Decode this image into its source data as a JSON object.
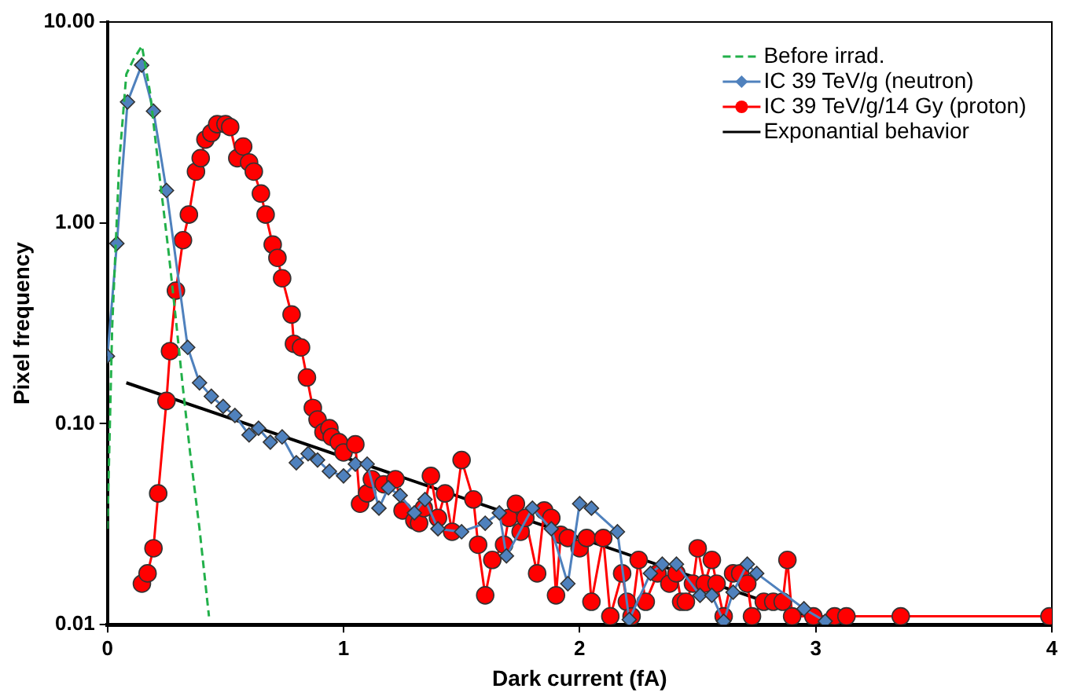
{
  "chart_data": {
    "type": "line",
    "xlabel": "Dark current (fA)",
    "ylabel": "Pixel frequency",
    "xlim": [
      0,
      4
    ],
    "xticks": [
      0,
      1,
      2,
      3,
      4
    ],
    "ylim": [
      0.01,
      10
    ],
    "yticks": [
      {
        "value": 0.01,
        "label": "0.01"
      },
      {
        "value": 0.1,
        "label": "0.10"
      },
      {
        "value": 1,
        "label": "1.00"
      },
      {
        "value": 10,
        "label": "10.00"
      }
    ],
    "log": "y",
    "grid": false,
    "legend": "top right",
    "series": [
      {
        "name": "Before irrad.",
        "color": "#22b04a",
        "marker": "none",
        "line_style": "dashed",
        "x": [
          0,
          0.02,
          0.05,
          0.08,
          0.11,
          0.146,
          0.18,
          0.22,
          0.26,
          0.29,
          0.32,
          0.35,
          0.39,
          0.43
        ],
        "values": [
          0.03,
          0.3,
          2.0,
          5.5,
          6.5,
          7.6,
          4.5,
          1.74,
          0.7,
          0.33,
          0.15,
          0.072,
          0.03,
          0.011
        ]
      },
      {
        "name": "IC 39 TeV/g (neutron)",
        "color": "#4f81bd",
        "marker": "diamond",
        "line_style": "solid",
        "x": [
          0,
          0.04,
          0.085,
          0.145,
          0.195,
          0.25,
          0.34,
          0.39,
          0.44,
          0.49,
          0.54,
          0.6,
          0.64,
          0.69,
          0.74,
          0.8,
          0.85,
          0.89,
          0.94,
          1.0,
          1.05,
          1.1,
          1.15,
          1.19,
          1.24,
          1.3,
          1.345,
          1.4,
          1.5,
          1.6,
          1.66,
          1.69,
          1.8,
          1.88,
          1.95,
          2.0,
          2.05,
          2.16,
          2.21,
          2.3,
          2.35,
          2.41,
          2.51,
          2.56,
          2.61,
          2.65,
          2.71,
          2.75,
          2.95,
          3.04
        ],
        "values": [
          0.217,
          0.79,
          4.0,
          6.1,
          3.6,
          1.45,
          0.24,
          0.16,
          0.137,
          0.122,
          0.11,
          0.088,
          0.095,
          0.081,
          0.086,
          0.064,
          0.071,
          0.066,
          0.058,
          0.055,
          0.063,
          0.063,
          0.038,
          0.048,
          0.044,
          0.036,
          0.042,
          0.03,
          0.029,
          0.032,
          0.036,
          0.022,
          0.038,
          0.03,
          0.016,
          0.04,
          0.038,
          0.029,
          0.0106,
          0.018,
          0.02,
          0.02,
          0.014,
          0.014,
          0.0104,
          0.0145,
          0.02,
          0.018,
          0.012,
          0.0104
        ]
      },
      {
        "name": "IC 39 TeV/g/14 Gy (proton)",
        "color": "#ff0000",
        "marker": "circle",
        "line_style": "solid",
        "x": [
          0.146,
          0.17,
          0.195,
          0.215,
          0.25,
          0.265,
          0.29,
          0.32,
          0.345,
          0.375,
          0.395,
          0.415,
          0.44,
          0.465,
          0.5,
          0.52,
          0.55,
          0.575,
          0.6,
          0.62,
          0.65,
          0.67,
          0.7,
          0.72,
          0.74,
          0.78,
          0.79,
          0.82,
          0.845,
          0.87,
          0.89,
          0.915,
          0.94,
          0.95,
          0.98,
          1.0,
          1.05,
          1.07,
          1.1,
          1.12,
          1.17,
          1.22,
          1.25,
          1.3,
          1.32,
          1.34,
          1.37,
          1.4,
          1.43,
          1.46,
          1.5,
          1.55,
          1.57,
          1.6,
          1.63,
          1.68,
          1.7,
          1.73,
          1.75,
          1.77,
          1.82,
          1.85,
          1.88,
          1.9,
          1.92,
          1.95,
          2.0,
          2.03,
          2.05,
          2.1,
          2.13,
          2.18,
          2.2,
          2.22,
          2.25,
          2.28,
          2.33,
          2.38,
          2.41,
          2.43,
          2.45,
          2.48,
          2.5,
          2.53,
          2.56,
          2.58,
          2.61,
          2.65,
          2.68,
          2.71,
          2.73,
          2.78,
          2.82,
          2.86,
          2.88,
          2.9,
          2.99,
          3.08,
          3.13,
          3.36,
          3.99
        ],
        "values": [
          0.016,
          0.018,
          0.024,
          0.045,
          0.13,
          0.23,
          0.46,
          0.82,
          1.1,
          1.8,
          2.1,
          2.6,
          2.8,
          3.1,
          3.1,
          3.0,
          2.1,
          2.4,
          2.0,
          1.8,
          1.4,
          1.1,
          0.78,
          0.67,
          0.53,
          0.35,
          0.25,
          0.24,
          0.17,
          0.12,
          0.105,
          0.091,
          0.095,
          0.086,
          0.081,
          0.072,
          0.079,
          0.04,
          0.045,
          0.053,
          0.05,
          0.053,
          0.037,
          0.033,
          0.032,
          0.038,
          0.055,
          0.034,
          0.045,
          0.029,
          0.066,
          0.042,
          0.025,
          0.014,
          0.021,
          0.025,
          0.034,
          0.04,
          0.029,
          0.034,
          0.018,
          0.037,
          0.034,
          0.014,
          0.028,
          0.027,
          0.024,
          0.027,
          0.013,
          0.027,
          0.011,
          0.018,
          0.013,
          0.011,
          0.021,
          0.013,
          0.018,
          0.016,
          0.018,
          0.013,
          0.013,
          0.016,
          0.024,
          0.016,
          0.021,
          0.016,
          0.011,
          0.018,
          0.018,
          0.016,
          0.011,
          0.013,
          0.013,
          0.013,
          0.021,
          0.011,
          0.011,
          0.011,
          0.011,
          0.011,
          0.011
        ]
      },
      {
        "name": "Exponantial behavior",
        "color": "#000000",
        "marker": "none",
        "line_style": "solid",
        "x": [
          0.08,
          3.0
        ],
        "values": [
          0.16,
          0.0107
        ]
      }
    ]
  }
}
